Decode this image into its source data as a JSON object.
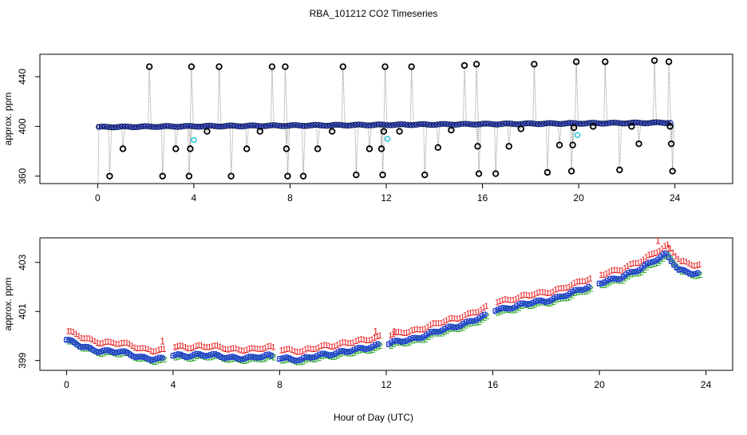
{
  "title": "RBA_101212  CO2 Timeseries",
  "xlabel": "Hour of Day (UTC)",
  "chart_data": [
    {
      "type": "scatter",
      "panel": "top",
      "ylabel": "approx. ppm",
      "xlim": [
        -2.4,
        26.4
      ],
      "ylim": [
        354,
        458
      ],
      "xticks": [
        0,
        4,
        8,
        12,
        16,
        20,
        24
      ],
      "yticks": [
        360,
        400,
        440
      ],
      "baseline": {
        "start": 399.5,
        "end": 403.0,
        "x_start": 0.05,
        "x_end": 23.85,
        "step": 0.12
      },
      "baseline_series": [
        "blue circles",
        "black circles",
        "red line"
      ],
      "spikes": [
        {
          "x": 0.5,
          "y": 360
        },
        {
          "x": 1.05,
          "y": 382
        },
        {
          "x": 2.15,
          "y": 448
        },
        {
          "x": 2.7,
          "y": 360
        },
        {
          "x": 3.25,
          "y": 382
        },
        {
          "x": 3.8,
          "y": 360
        },
        {
          "x": 3.85,
          "y": 382
        },
        {
          "x": 3.9,
          "y": 448
        },
        {
          "x": 4.55,
          "y": 396
        },
        {
          "x": 5.05,
          "y": 448
        },
        {
          "x": 5.55,
          "y": 360
        },
        {
          "x": 6.2,
          "y": 382
        },
        {
          "x": 6.75,
          "y": 396
        },
        {
          "x": 7.25,
          "y": 448
        },
        {
          "x": 7.8,
          "y": 448
        },
        {
          "x": 7.85,
          "y": 382
        },
        {
          "x": 7.9,
          "y": 360
        },
        {
          "x": 8.55,
          "y": 360
        },
        {
          "x": 9.15,
          "y": 382
        },
        {
          "x": 9.75,
          "y": 396
        },
        {
          "x": 10.2,
          "y": 448
        },
        {
          "x": 10.75,
          "y": 361
        },
        {
          "x": 11.3,
          "y": 382
        },
        {
          "x": 11.8,
          "y": 382
        },
        {
          "x": 11.85,
          "y": 361
        },
        {
          "x": 11.9,
          "y": 396
        },
        {
          "x": 11.95,
          "y": 448
        },
        {
          "x": 12.55,
          "y": 396
        },
        {
          "x": 13.05,
          "y": 448
        },
        {
          "x": 13.6,
          "y": 361
        },
        {
          "x": 14.15,
          "y": 383
        },
        {
          "x": 14.7,
          "y": 397
        },
        {
          "x": 15.25,
          "y": 449
        },
        {
          "x": 15.75,
          "y": 450
        },
        {
          "x": 15.8,
          "y": 384
        },
        {
          "x": 15.85,
          "y": 362
        },
        {
          "x": 16.55,
          "y": 362
        },
        {
          "x": 17.1,
          "y": 384
        },
        {
          "x": 17.6,
          "y": 398
        },
        {
          "x": 18.15,
          "y": 450
        },
        {
          "x": 18.7,
          "y": 363
        },
        {
          "x": 19.2,
          "y": 385
        },
        {
          "x": 19.7,
          "y": 364
        },
        {
          "x": 19.75,
          "y": 385
        },
        {
          "x": 19.8,
          "y": 399
        },
        {
          "x": 19.9,
          "y": 452
        },
        {
          "x": 20.6,
          "y": 400
        },
        {
          "x": 21.1,
          "y": 452
        },
        {
          "x": 21.7,
          "y": 365
        },
        {
          "x": 22.2,
          "y": 400
        },
        {
          "x": 22.5,
          "y": 386
        },
        {
          "x": 23.15,
          "y": 453
        },
        {
          "x": 23.75,
          "y": 452
        },
        {
          "x": 23.8,
          "y": 400
        },
        {
          "x": 23.85,
          "y": 386
        },
        {
          "x": 23.9,
          "y": 364
        }
      ],
      "cyan_points": [
        {
          "x": 4.0,
          "y": 389
        },
        {
          "x": 12.05,
          "y": 390
        },
        {
          "x": 19.95,
          "y": 393
        }
      ]
    },
    {
      "type": "scatter",
      "panel": "bottom",
      "ylabel": "approx. ppm",
      "xlim": [
        -1.0,
        25.0
      ],
      "ylim": [
        398.6,
        404.0
      ],
      "xticks": [
        0,
        4,
        8,
        12,
        16,
        20,
        24
      ],
      "yticks": [
        399,
        401,
        403
      ],
      "markers": [
        "1",
        "2",
        "3"
      ],
      "marker_colors": [
        "#e41a1c",
        "#1fa01f",
        "#1f3fd0"
      ],
      "legend_markers": [
        "o"
      ],
      "x_start": 0.0,
      "x_end": 23.75,
      "step": 0.1,
      "gaps": [
        [
          3.7,
          3.95
        ],
        [
          7.7,
          7.95
        ],
        [
          11.7,
          12.05
        ],
        [
          15.7,
          16.0
        ],
        [
          19.7,
          20.0
        ]
      ],
      "trend": [
        {
          "x": 0.0,
          "y": 399.85
        },
        {
          "x": 0.5,
          "y": 399.6
        },
        {
          "x": 1.0,
          "y": 399.45
        },
        {
          "x": 2.0,
          "y": 399.35
        },
        {
          "x": 2.8,
          "y": 399.15
        },
        {
          "x": 3.6,
          "y": 399.05
        },
        {
          "x": 4.0,
          "y": 399.2
        },
        {
          "x": 5.0,
          "y": 399.25
        },
        {
          "x": 6.0,
          "y": 399.15
        },
        {
          "x": 7.0,
          "y": 399.1
        },
        {
          "x": 7.6,
          "y": 399.2
        },
        {
          "x": 8.3,
          "y": 399.1
        },
        {
          "x": 8.8,
          "y": 399.0
        },
        {
          "x": 9.5,
          "y": 399.25
        },
        {
          "x": 10.5,
          "y": 399.35
        },
        {
          "x": 11.7,
          "y": 399.65
        },
        {
          "x": 12.0,
          "y": 399.65
        },
        {
          "x": 13.0,
          "y": 399.9
        },
        {
          "x": 14.0,
          "y": 400.2
        },
        {
          "x": 15.0,
          "y": 400.55
        },
        {
          "x": 15.7,
          "y": 400.8
        },
        {
          "x": 16.0,
          "y": 401.05
        },
        {
          "x": 17.0,
          "y": 401.25
        },
        {
          "x": 18.0,
          "y": 401.45
        },
        {
          "x": 19.0,
          "y": 401.75
        },
        {
          "x": 19.7,
          "y": 402.05
        },
        {
          "x": 20.0,
          "y": 402.2
        },
        {
          "x": 20.8,
          "y": 402.35
        },
        {
          "x": 21.5,
          "y": 402.75
        },
        {
          "x": 22.0,
          "y": 403.05
        },
        {
          "x": 22.5,
          "y": 403.3
        },
        {
          "x": 23.0,
          "y": 402.7
        },
        {
          "x": 23.75,
          "y": 402.55
        }
      ],
      "label_ones": [
        {
          "x": 3.6,
          "y": 399.65
        },
        {
          "x": 11.6,
          "y": 400.05
        },
        {
          "x": 12.3,
          "y": 400.05
        },
        {
          "x": 22.2,
          "y": 403.75
        },
        {
          "x": 22.6,
          "y": 403.45
        }
      ]
    }
  ]
}
